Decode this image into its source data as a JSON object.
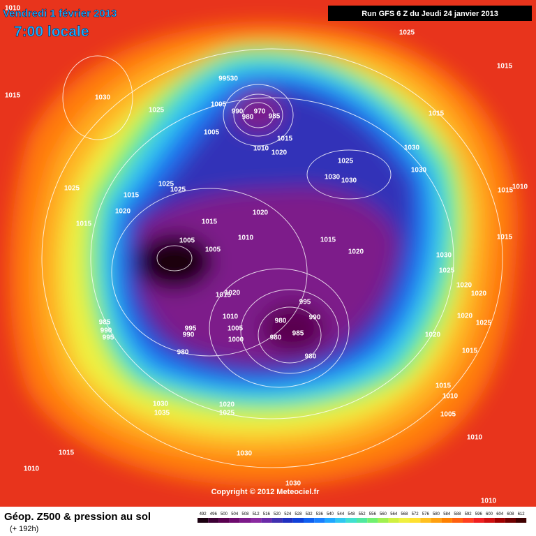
{
  "header": {
    "date": "Vendredi 1 février 2013",
    "time": "7:00 locale",
    "run": "Run GFS 6 Z du Jeudi 24 janvier 2013"
  },
  "copyright": "Copyright © 2012 Meteociel.fr",
  "footer": {
    "title": "Géop. Z500 & pression au sol",
    "lead": "(+ 192h)"
  },
  "colorbar": {
    "values": [
      492,
      496,
      500,
      504,
      508,
      512,
      516,
      520,
      524,
      528,
      532,
      536,
      540,
      544,
      548,
      552,
      556,
      560,
      564,
      568,
      572,
      576,
      580,
      584,
      588,
      592,
      596,
      600,
      604,
      608,
      612
    ],
    "colors": [
      "#1a0010",
      "#3d0035",
      "#5a0050",
      "#6e0a6e",
      "#7d1a8a",
      "#8a2aa0",
      "#6a2aa8",
      "#4030b0",
      "#2030c0",
      "#1040d8",
      "#1060f0",
      "#1a80ff",
      "#20a8ff",
      "#30c8f0",
      "#40e0d0",
      "#50e8a0",
      "#70f070",
      "#a0f050",
      "#d0f040",
      "#f0f040",
      "#ffe030",
      "#ffc020",
      "#ffa010",
      "#ff8000",
      "#ff6010",
      "#ff4020",
      "#f02020",
      "#d01010",
      "#a00000",
      "#700000",
      "#400000"
    ]
  },
  "isobar_labels": [
    1010,
    1015,
    1030,
    1025,
    "99530",
    1005,
    990,
    980,
    970,
    985,
    1005,
    1015,
    1010,
    1020,
    1025,
    1030,
    1030,
    1030,
    1030,
    1015,
    1025,
    1015,
    1025,
    1025,
    1025,
    1015,
    1020,
    1015,
    1015,
    1020,
    1010,
    1005,
    1005,
    1015,
    1020,
    1030,
    1025,
    1015,
    1015,
    1010,
    1020,
    1020,
    1020,
    1025,
    1020,
    1015,
    1020,
    1015,
    995,
    990,
    980,
    985,
    980,
    980,
    1010,
    1005,
    1000,
    995,
    990,
    985,
    990,
    995,
    980,
    1030,
    1035,
    1020,
    1025,
    1015,
    1010,
    1005,
    1010,
    1015,
    1010,
    1030,
    1030,
    1010
  ]
}
